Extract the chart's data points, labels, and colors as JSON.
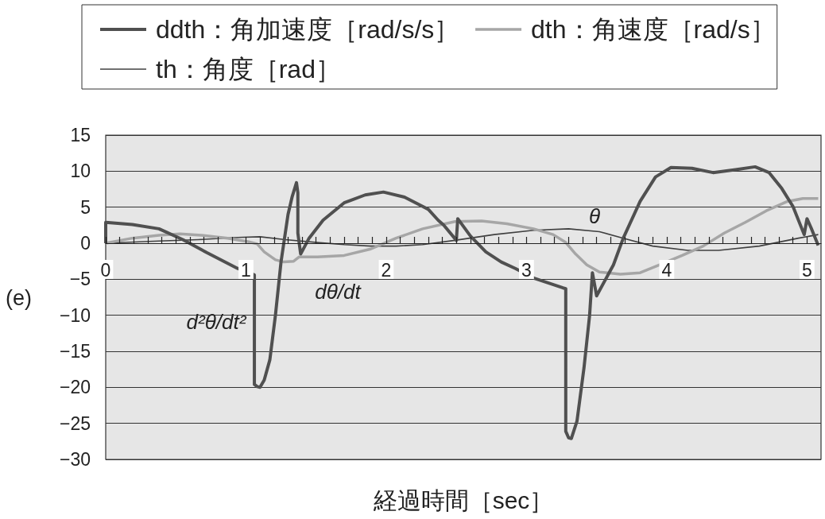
{
  "chart_data": {
    "type": "line",
    "xlabel": "経過時間［sec］",
    "annotations": [
      "(e)",
      "θ",
      "dθ/dt",
      "d²θ/dt²"
    ],
    "xlim": [
      0,
      5.1
    ],
    "xticks": [
      0,
      {
        "value": 0.1,
        "label": null
      },
      {
        "value": 0.2,
        "label": null
      },
      {
        "value": 0.3,
        "label": null
      },
      {
        "value": 0.4,
        "label": null
      },
      {
        "value": 0.5,
        "label": null
      },
      {
        "value": 0.6,
        "label": null
      },
      {
        "value": 0.7,
        "label": null
      },
      {
        "value": 0.8,
        "label": null
      },
      {
        "value": 0.9,
        "label": null
      },
      1,
      {
        "value": 1.1,
        "label": null
      },
      {
        "value": 1.2,
        "label": null
      },
      {
        "value": 1.3,
        "label": null
      },
      {
        "value": 1.4,
        "label": null
      },
      {
        "value": 1.5,
        "label": null
      },
      {
        "value": 1.6,
        "label": null
      },
      {
        "value": 1.7,
        "label": null
      },
      {
        "value": 1.8,
        "label": null
      },
      {
        "value": 1.9,
        "label": null
      },
      2,
      {
        "value": 2.1,
        "label": null
      },
      {
        "value": 2.2,
        "label": null
      },
      {
        "value": 2.3,
        "label": null
      },
      {
        "value": 2.4,
        "label": null
      },
      {
        "value": 2.5,
        "label": null
      },
      {
        "value": 2.6,
        "label": null
      },
      {
        "value": 2.7,
        "label": null
      },
      {
        "value": 2.8,
        "label": null
      },
      {
        "value": 2.9,
        "label": null
      },
      3,
      {
        "value": 3.1,
        "label": null
      },
      {
        "value": 3.2,
        "label": null
      },
      {
        "value": 3.3,
        "label": null
      },
      {
        "value": 3.4,
        "label": null
      },
      {
        "value": 3.5,
        "label": null
      },
      {
        "value": 3.6,
        "label": null
      },
      {
        "value": 3.7,
        "label": null
      },
      {
        "value": 3.8,
        "label": null
      },
      {
        "value": 3.9,
        "label": null
      },
      4,
      {
        "value": 4.1,
        "label": null
      },
      {
        "value": 4.2,
        "label": null
      },
      {
        "value": 4.3,
        "label": null
      },
      {
        "value": 4.4,
        "label": null
      },
      {
        "value": 4.5,
        "label": null
      },
      {
        "value": 4.6,
        "label": null
      },
      {
        "value": 4.7,
        "label": null
      },
      {
        "value": 4.8,
        "label": null
      },
      {
        "value": 4.9,
        "label": null
      },
      5
    ],
    "ylim": [
      -30,
      15
    ],
    "yticks": [
      {
        "value": -30,
        "label": "−30"
      },
      {
        "value": -25,
        "label": "−25"
      },
      {
        "value": -20,
        "label": "−20"
      },
      {
        "value": -15,
        "label": "−15"
      },
      {
        "value": -10,
        "label": "−10"
      },
      {
        "value": -5,
        "label": "−5"
      },
      0,
      5,
      10,
      15
    ],
    "grid": "y",
    "legend": "top",
    "series": [
      {
        "name": "ddth：角加速度［rad/s/s］",
        "color": "#505050",
        "x": [
          0,
          0,
          0.19,
          0.38,
          0.55,
          0.72,
          0.94,
          1.06,
          1.06,
          1.08,
          1.1,
          1.13,
          1.17,
          1.21,
          1.25,
          1.3,
          1.33,
          1.36,
          1.37,
          1.37,
          1.39,
          1.45,
          1.55,
          1.7,
          1.85,
          1.98,
          2.13,
          2.26,
          2.3,
          2.37,
          2.41,
          2.5,
          2.51,
          2.6,
          2.71,
          2.82,
          2.92,
          3.06,
          3.26,
          3.28,
          3.28,
          3.3,
          3.32,
          3.36,
          3.41,
          3.45,
          3.47,
          3.5,
          3.62,
          3.69,
          3.81,
          3.92,
          4.03,
          4.18,
          4.33,
          4.49,
          4.63,
          4.73,
          4.82,
          4.9,
          4.98,
          5.0,
          5.03,
          5.08
        ],
        "values": [
          0,
          2.9,
          2.6,
          2.0,
          0.5,
          -1.3,
          -3.5,
          -4.4,
          -19.6,
          -19.9,
          -20.0,
          -19.0,
          -16.2,
          -10,
          -2.6,
          4,
          6.5,
          8.4,
          7.0,
          1.4,
          -1.5,
          0.7,
          3.2,
          5.6,
          6.7,
          7.1,
          6.4,
          5.1,
          4.7,
          3.2,
          2.5,
          0.4,
          3.4,
          1.0,
          -1.2,
          -2.6,
          -3.5,
          -4.9,
          -6.2,
          -6.3,
          -26.1,
          -27.0,
          -27.1,
          -24.7,
          -17.3,
          -10,
          -4.1,
          -7.3,
          -3.0,
          0.7,
          5.8,
          9.2,
          10.5,
          10.4,
          9.8,
          10.2,
          10.6,
          9.8,
          7.6,
          5.1,
          1.2,
          3.4,
          2.1,
          -0.3
        ]
      },
      {
        "name": "dth：角速度［rad/s］",
        "color": "#a6a6a6",
        "x": [
          0,
          0.19,
          0.38,
          0.53,
          0.68,
          0.87,
          1.02,
          1.08,
          1.13,
          1.21,
          1.27,
          1.34,
          1.38,
          1.51,
          1.7,
          1.89,
          2.07,
          2.26,
          2.49,
          2.68,
          2.86,
          3.05,
          3.19,
          3.28,
          3.35,
          3.43,
          3.52,
          3.67,
          3.81,
          3.95,
          4.11,
          4.26,
          4.41,
          4.56,
          4.71,
          4.86,
          4.97,
          5.08
        ],
        "values": [
          0,
          0.7,
          1.1,
          1.3,
          1.1,
          0.7,
          0.2,
          -0.1,
          -1.2,
          -2.3,
          -2.6,
          -2.5,
          -1.9,
          -1.9,
          -1.7,
          -0.8,
          0.7,
          2.0,
          3.0,
          3.1,
          2.7,
          2.0,
          1.2,
          0.1,
          -1.5,
          -3.0,
          -4.0,
          -4.3,
          -4.1,
          -3.0,
          -1.7,
          -0.4,
          1.4,
          2.9,
          4.5,
          5.8,
          6.2,
          6.2
        ]
      },
      {
        "name": "th：角度［rad］",
        "color": "#404040",
        "x": [
          0,
          0.38,
          0.66,
          0.94,
          1.1,
          1.28,
          1.51,
          1.7,
          1.89,
          2.07,
          2.26,
          2.49,
          2.77,
          3.05,
          3.3,
          3.52,
          3.69,
          3.9,
          4.15,
          4.37,
          4.66,
          4.94,
          5.08
        ],
        "values": [
          0,
          0.3,
          0.5,
          0.8,
          0.9,
          0.5,
          0.1,
          -0.2,
          -0.4,
          -0.4,
          -0.2,
          0.4,
          1.2,
          1.8,
          2.0,
          1.6,
          0.7,
          -0.4,
          -1.0,
          -1.0,
          -0.4,
          0.7,
          1.2
        ]
      }
    ]
  }
}
